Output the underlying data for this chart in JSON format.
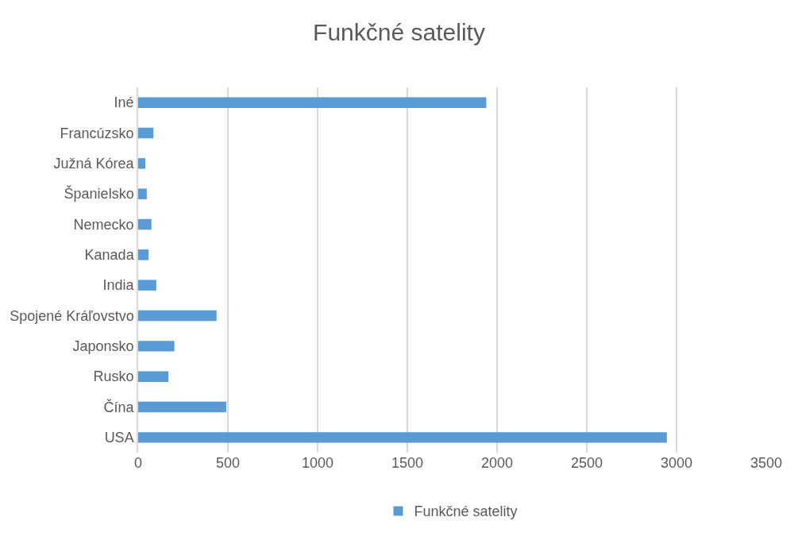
{
  "chart_data": {
    "type": "bar",
    "orientation": "horizontal",
    "title": "Funkčné satelity",
    "categories": [
      "Iné",
      "Francúzsko",
      "Južná Kórea",
      "Španielsko",
      "Nemecko",
      "Kanada",
      "India",
      "Spojené Kráľovstvo",
      "Japonsko",
      "Rusko",
      "Čína",
      "USA"
    ],
    "series": [
      {
        "name": "Funkčné satelity",
        "color": "#5b9bd5",
        "values": [
          1940,
          85,
          40,
          48,
          74,
          58,
          101,
          437,
          202,
          169,
          491,
          2946
        ]
      }
    ],
    "xlim": [
      0,
      3500
    ],
    "xticks": [
      0,
      500,
      1000,
      1500,
      2000,
      2500,
      3000,
      3500
    ],
    "grid": "x",
    "legend": "bottom"
  }
}
